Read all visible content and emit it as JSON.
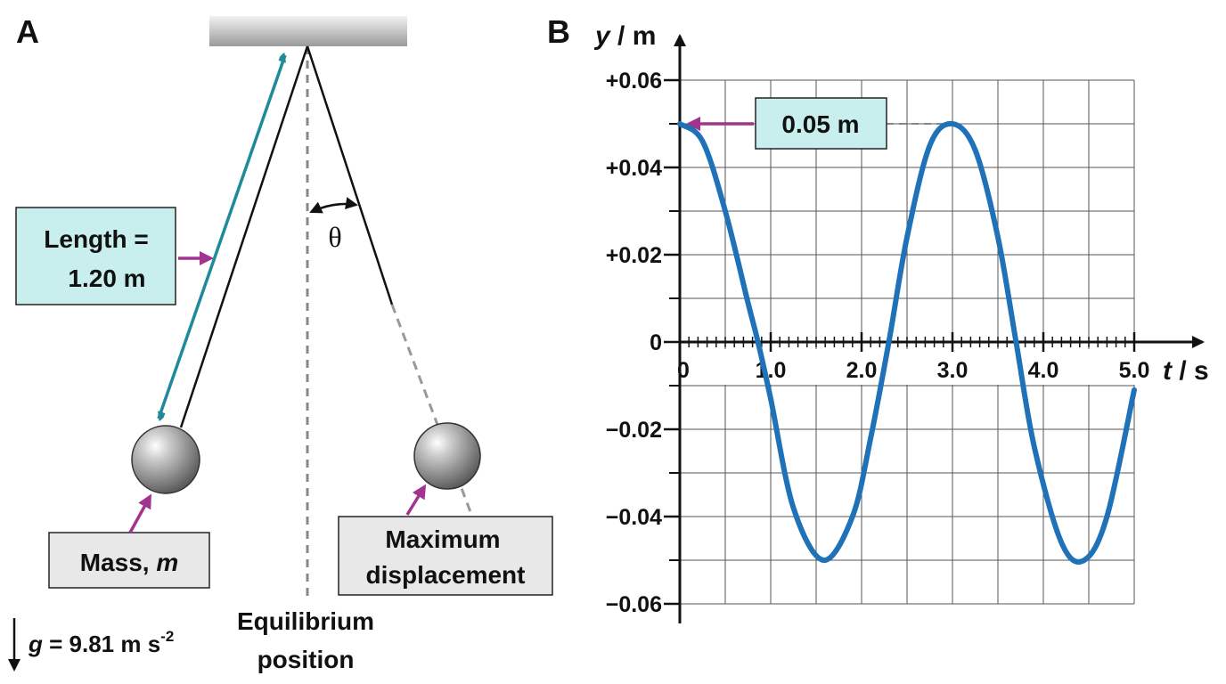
{
  "panel_a": {
    "label": "A",
    "length_label": [
      "Length =",
      "1.20 m"
    ],
    "theta": "θ",
    "mass_label": {
      "text": "Mass, ",
      "symbol": "m"
    },
    "max_label": [
      "Maximum",
      "displacement"
    ],
    "equilibrium_label": [
      "Equilibrium",
      "position"
    ],
    "gravity_label": {
      "symbol": "g",
      "text": " = 9.81 m s",
      "exponent": "-2"
    }
  },
  "chart_data": {
    "type": "line",
    "panel_label": "B",
    "ylabel_symbol": "y",
    "ylabel_unit": " / m",
    "xlabel_symbol": "t",
    "xlabel_unit": " / s",
    "x": [
      0,
      0.25,
      0.5,
      0.75,
      0.86,
      1.0,
      1.25,
      1.58,
      1.9,
      2.1,
      2.3,
      2.5,
      2.75,
      3.0,
      3.25,
      3.5,
      3.7,
      3.9,
      4.2,
      4.45,
      4.7,
      5.0
    ],
    "values": [
      0.05,
      0.046,
      0.03,
      0.009,
      0,
      -0.013,
      -0.038,
      -0.05,
      -0.04,
      -0.022,
      0,
      0.024,
      0.045,
      0.05,
      0.044,
      0.024,
      0,
      -0.024,
      -0.046,
      -0.05,
      -0.04,
      -0.011
    ],
    "color": "#1f72b8",
    "xlim": [
      0,
      5.0
    ],
    "ylim": [
      -0.06,
      0.06
    ],
    "xticks": [
      0,
      {
        "value": 1.0,
        "label": "1.0"
      },
      {
        "value": 2.0,
        "label": "2.0"
      },
      {
        "value": 3.0,
        "label": "3.0"
      },
      {
        "value": 4.0,
        "label": "4.0"
      },
      {
        "value": 5.0,
        "label": "5.0"
      }
    ],
    "yticks": [
      {
        "value": 0.06,
        "label": "+0.06"
      },
      {
        "value": 0.04,
        "label": "+0.04"
      },
      {
        "value": 0.02,
        "label": "+0.02"
      },
      0,
      {
        "value": -0.02,
        "label": "−0.02"
      },
      {
        "value": -0.04,
        "label": "−0.04"
      },
      {
        "value": -0.06,
        "label": "−0.06"
      }
    ],
    "grid_x": [
      0,
      0.5,
      1.0,
      1.5,
      2.0,
      2.5,
      3.0,
      3.5,
      4.0,
      4.5,
      5.0
    ],
    "grid_y": [
      -0.06,
      -0.05,
      -0.04,
      -0.03,
      -0.02,
      -0.01,
      0,
      0.01,
      0.02,
      0.03,
      0.04,
      0.05,
      0.06
    ],
    "minor_tick_step": 0.1,
    "annotation": {
      "text": "0.05 m",
      "value": 0.05
    }
  }
}
